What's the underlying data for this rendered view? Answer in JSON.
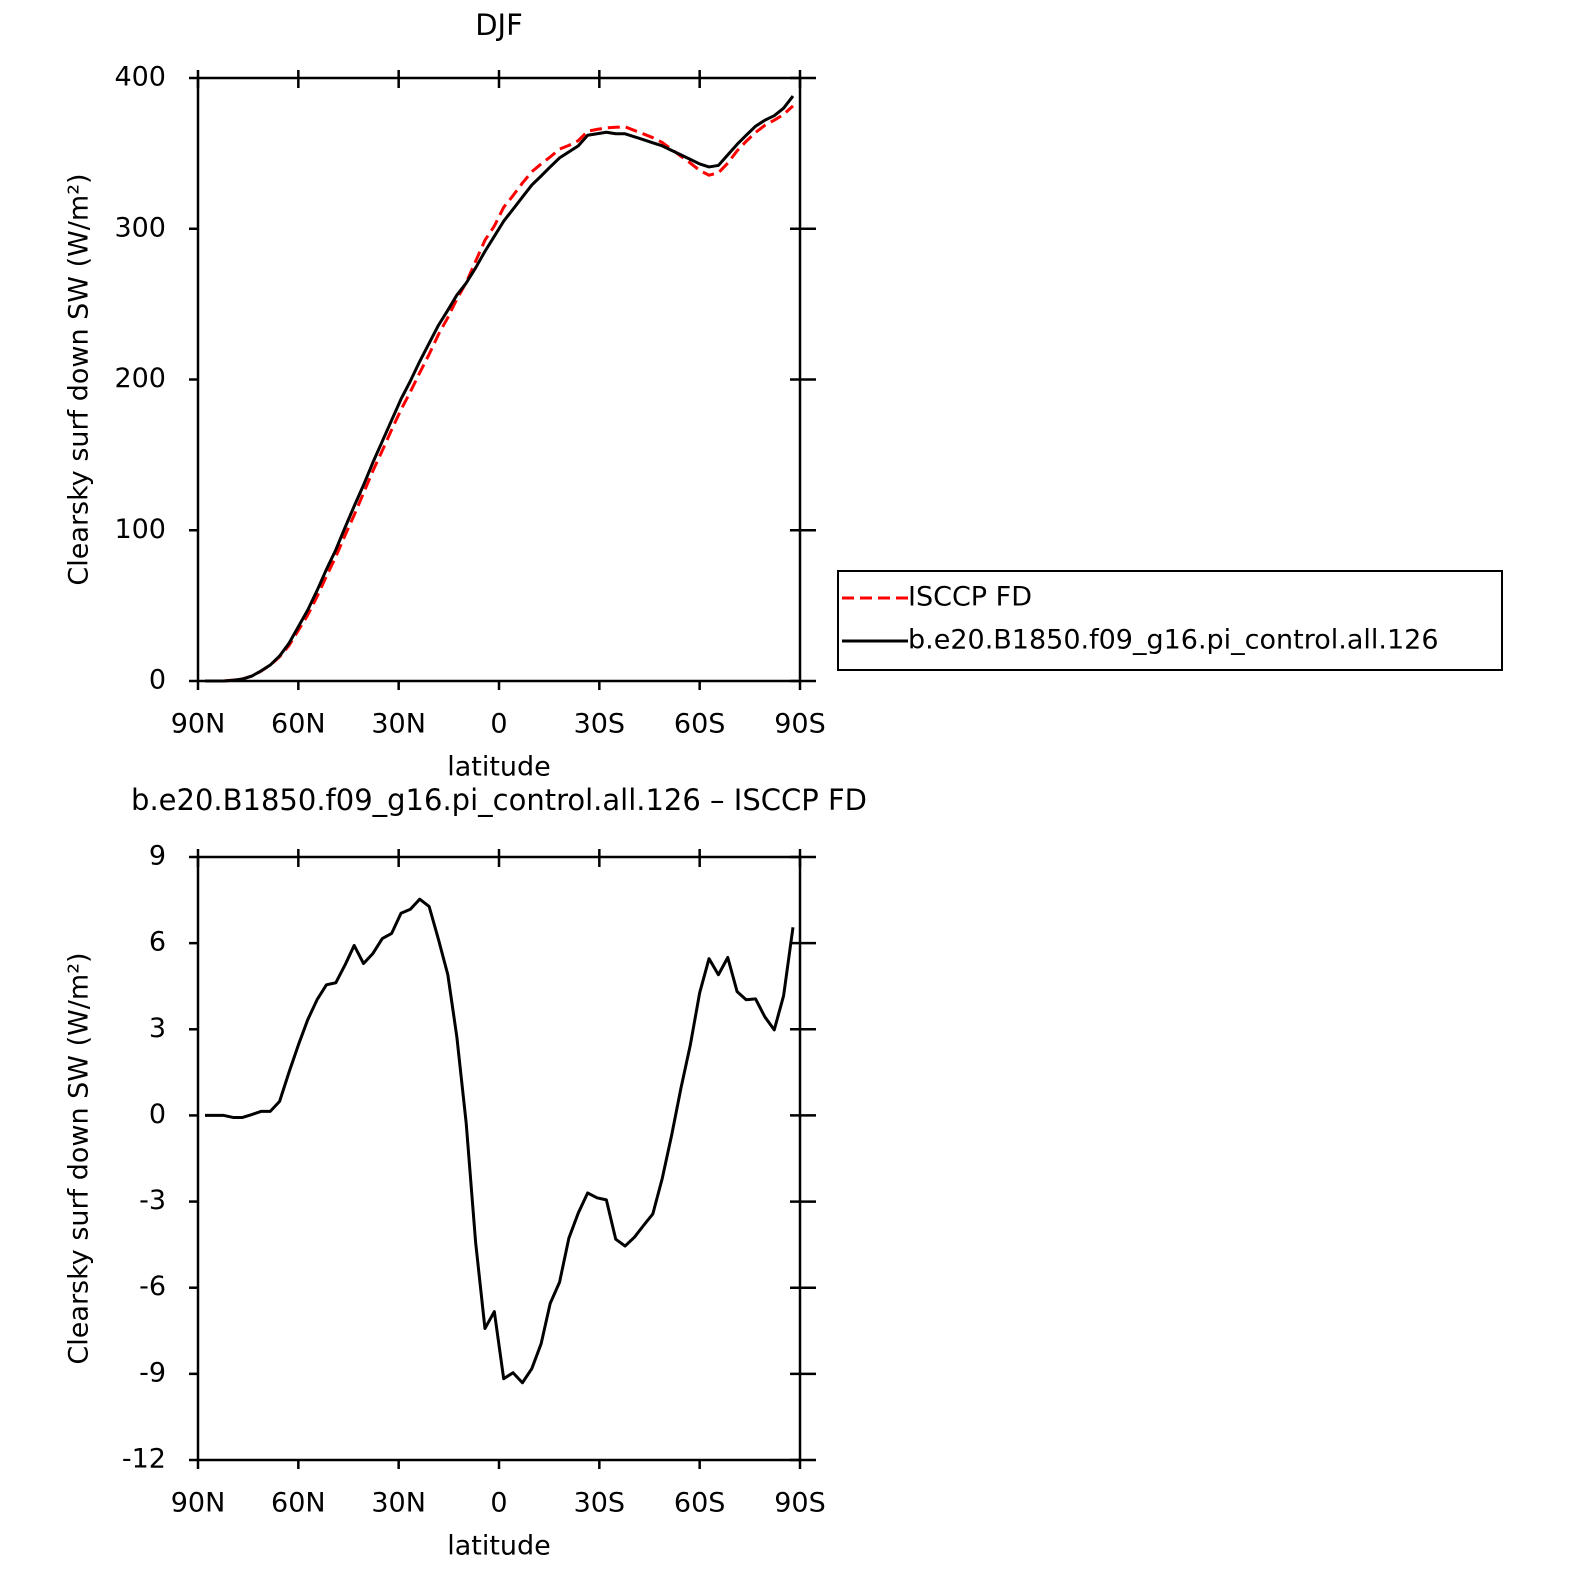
{
  "chart_data": [
    {
      "type": "line",
      "title": "DJF",
      "xlabel": "latitude",
      "ylabel": "Clearsky surf down SW (W/m²)",
      "x": [
        87.9,
        85.1,
        82.3,
        79.5,
        76.7,
        73.9,
        71.2,
        68.4,
        65.6,
        62.8,
        60.0,
        57.2,
        54.4,
        51.6,
        48.8,
        46.0,
        43.3,
        40.5,
        37.7,
        34.9,
        32.1,
        29.3,
        26.5,
        23.7,
        20.9,
        18.1,
        15.3,
        12.6,
        9.8,
        7.0,
        4.2,
        1.4,
        -1.4,
        -4.2,
        -7.0,
        -9.8,
        -12.6,
        -15.3,
        -18.1,
        -20.9,
        -23.7,
        -26.5,
        -29.3,
        -32.1,
        -34.9,
        -37.7,
        -40.5,
        -43.3,
        -46.0,
        -48.8,
        -51.6,
        -54.4,
        -57.2,
        -60.0,
        -62.8,
        -65.6,
        -68.4,
        -71.2,
        -73.9,
        -76.7,
        -79.5,
        -82.3,
        -85.1,
        -87.9
      ],
      "series": [
        {
          "name": "ISCCP FD",
          "color": "#ff0000",
          "line_style": "dashed",
          "values": [
            0,
            0,
            0,
            0.6,
            1.4,
            3.3,
            6.5,
            10.5,
            16.1,
            23.5,
            33.6,
            43.7,
            56.0,
            69.5,
            82.4,
            96.8,
            110.1,
            124.7,
            139.4,
            152.8,
            166.7,
            180.0,
            191.8,
            204.5,
            216.7,
            229.9,
            241.1,
            253.3,
            264.3,
            278.4,
            292.4,
            301.8,
            314.2,
            322.0,
            330.3,
            337.8,
            343.0,
            347.6,
            352.8,
            355.3,
            358.4,
            364.7,
            365.9,
            366.9,
            367.3,
            367.6,
            365.2,
            362.8,
            360.4,
            357.2,
            352.7,
            348.1,
            343.6,
            338.7,
            335.5,
            337.1,
            343.5,
            351.7,
            358.0,
            363.9,
            368.6,
            372.0,
            375.8,
            381.5
          ]
        },
        {
          "name": "b.e20.B1850.f09_g16.pi_control.all.126",
          "color": "#000000",
          "line_style": "solid",
          "values": [
            0,
            0,
            0,
            0.5,
            1.3,
            3.3,
            6.6,
            10.6,
            16.6,
            25,
            36,
            47,
            60,
            74,
            87,
            102,
            116,
            130,
            145,
            159,
            173,
            187,
            199,
            212,
            224,
            236,
            246,
            256,
            264,
            274,
            285,
            295,
            305,
            313,
            321,
            329,
            335,
            341,
            347,
            351,
            355,
            362,
            363,
            364,
            363,
            363,
            361,
            359,
            357,
            355,
            352,
            349,
            346,
            343,
            341,
            342,
            349,
            356,
            362,
            368,
            372,
            375,
            380,
            388
          ]
        }
      ],
      "xlim": [
        90,
        -90
      ],
      "xticks": [
        {
          "value": 90,
          "label": "90N"
        },
        {
          "value": 60,
          "label": "60N"
        },
        {
          "value": 30,
          "label": "30N"
        },
        0,
        {
          "value": -30,
          "label": "30S"
        },
        {
          "value": -60,
          "label": "60S"
        },
        {
          "value": -90,
          "label": "90S"
        }
      ],
      "ylim": [
        0,
        400
      ],
      "yticks": [
        0,
        100,
        200,
        300,
        400
      ],
      "legend": "right"
    },
    {
      "type": "line",
      "title": "b.e20.B1850.f09_g16.pi_control.all.126 – ISCCP FD",
      "xlabel": "latitude",
      "ylabel": "Clearsky surf down SW (W/m²)",
      "x": [
        87.9,
        85.1,
        82.3,
        79.5,
        76.7,
        73.9,
        71.2,
        68.4,
        65.6,
        62.8,
        60.0,
        57.2,
        54.4,
        51.6,
        48.8,
        46.0,
        43.3,
        40.5,
        37.7,
        34.9,
        32.1,
        29.3,
        26.5,
        23.7,
        20.9,
        18.1,
        15.3,
        12.6,
        9.8,
        7.0,
        4.2,
        1.4,
        -1.4,
        -4.2,
        -7.0,
        -9.8,
        -12.6,
        -15.3,
        -18.1,
        -20.9,
        -23.7,
        -26.5,
        -29.3,
        -32.1,
        -34.9,
        -37.7,
        -40.5,
        -43.3,
        -46.0,
        -48.8,
        -51.6,
        -54.4,
        -57.2,
        -60.0,
        -62.8,
        -65.6,
        -68.4,
        -71.2,
        -73.9,
        -76.7,
        -79.5,
        -82.3,
        -85.1,
        -87.9
      ],
      "values": [
        0,
        0,
        0,
        -0.07,
        -0.07,
        0.03,
        0.14,
        0.14,
        0.49,
        1.5,
        2.45,
        3.33,
        4.03,
        4.55,
        4.62,
        5.25,
        5.92,
        5.29,
        5.64,
        6.16,
        6.34,
        7.04,
        7.18,
        7.53,
        7.28,
        6.13,
        4.9,
        2.73,
        -0.28,
        -4.41,
        -7.42,
        -6.83,
        -9.17,
        -8.96,
        -9.31,
        -8.82,
        -7.95,
        -6.55,
        -5.81,
        -4.27,
        -3.4,
        -2.7,
        -2.87,
        -2.94,
        -4.31,
        -4.55,
        -4.24,
        -3.82,
        -3.43,
        -2.2,
        -0.7,
        0.95,
        2.45,
        4.27,
        5.46,
        4.9,
        5.5,
        4.31,
        4.03,
        4.06,
        3.43,
        2.98,
        4.17,
        6.55
      ],
      "color": "#000000",
      "xlim": [
        90,
        -90
      ],
      "xticks": [
        {
          "value": 90,
          "label": "90N"
        },
        {
          "value": 60,
          "label": "60N"
        },
        {
          "value": 30,
          "label": "30N"
        },
        0,
        {
          "value": -30,
          "label": "30S"
        },
        {
          "value": -60,
          "label": "60S"
        },
        {
          "value": -90,
          "label": "90S"
        }
      ],
      "ylim": [
        -12,
        9
      ],
      "yticks": [
        -12,
        -9,
        -6,
        -3,
        0,
        3,
        6,
        9
      ]
    }
  ]
}
